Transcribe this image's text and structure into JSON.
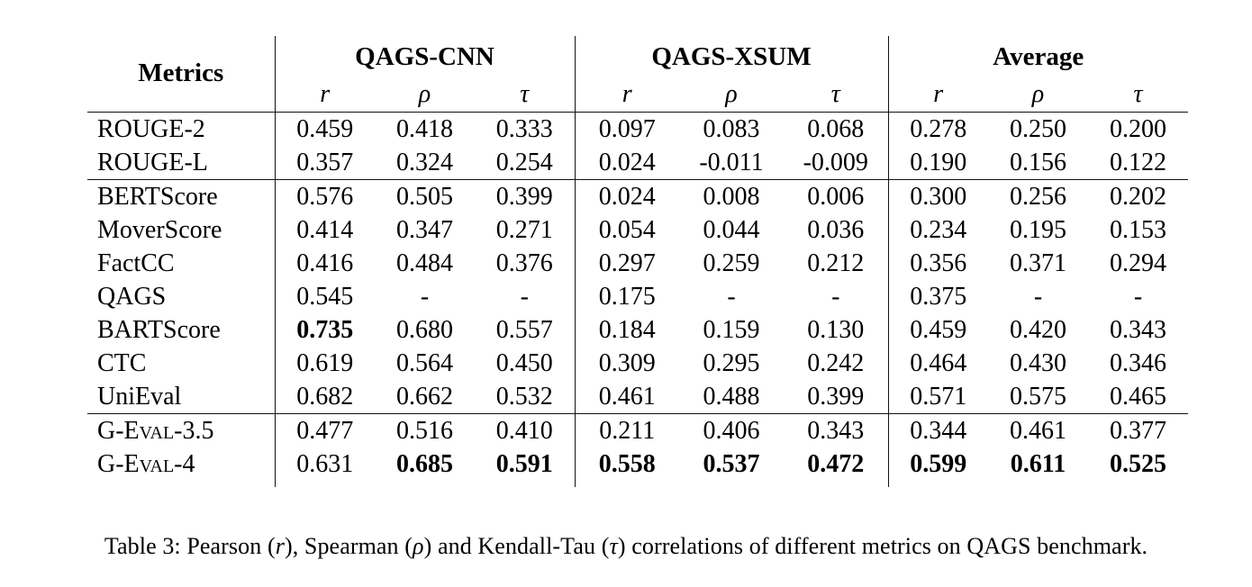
{
  "page": {
    "background": "#ffffff",
    "text_color": "#000000",
    "rule_color": "#111111"
  },
  "table": {
    "header": {
      "metrics_label": "Metrics",
      "groups": [
        {
          "label": "QAGS-CNN"
        },
        {
          "label": "QAGS-XSUM"
        },
        {
          "label": "Average"
        }
      ],
      "subheaders": [
        "r",
        "ρ",
        "τ"
      ]
    },
    "sections": [
      {
        "rule_after": true,
        "rows": [
          {
            "label": "ROUGE-2",
            "smallcaps": false,
            "values": [
              "0.459",
              "0.418",
              "0.333",
              "0.097",
              "0.083",
              "0.068",
              "0.278",
              "0.250",
              "0.200"
            ],
            "bold": []
          },
          {
            "label": "ROUGE-L",
            "smallcaps": false,
            "values": [
              "0.357",
              "0.324",
              "0.254",
              "0.024",
              "-0.011",
              "-0.009",
              "0.190",
              "0.156",
              "0.122"
            ],
            "bold": []
          }
        ]
      },
      {
        "rule_after": true,
        "rows": [
          {
            "label": "BERTScore",
            "smallcaps": false,
            "values": [
              "0.576",
              "0.505",
              "0.399",
              "0.024",
              "0.008",
              "0.006",
              "0.300",
              "0.256",
              "0.202"
            ],
            "bold": []
          },
          {
            "label": "MoverScore",
            "smallcaps": false,
            "values": [
              "0.414",
              "0.347",
              "0.271",
              "0.054",
              "0.044",
              "0.036",
              "0.234",
              "0.195",
              "0.153"
            ],
            "bold": []
          },
          {
            "label": "FactCC",
            "smallcaps": false,
            "values": [
              "0.416",
              "0.484",
              "0.376",
              "0.297",
              "0.259",
              "0.212",
              "0.356",
              "0.371",
              "0.294"
            ],
            "bold": []
          },
          {
            "label": "QAGS",
            "smallcaps": false,
            "values": [
              "0.545",
              "-",
              "-",
              "0.175",
              "-",
              "-",
              "0.375",
              "-",
              "-"
            ],
            "bold": []
          },
          {
            "label": "BARTScore",
            "smallcaps": false,
            "values": [
              "0.735",
              "0.680",
              "0.557",
              "0.184",
              "0.159",
              "0.130",
              "0.459",
              "0.420",
              "0.343"
            ],
            "bold": [
              0
            ]
          },
          {
            "label": "CTC",
            "smallcaps": false,
            "values": [
              "0.619",
              "0.564",
              "0.450",
              "0.309",
              "0.295",
              "0.242",
              "0.464",
              "0.430",
              "0.346"
            ],
            "bold": []
          },
          {
            "label": "UniEval",
            "smallcaps": false,
            "values": [
              "0.682",
              "0.662",
              "0.532",
              "0.461",
              "0.488",
              "0.399",
              "0.571",
              "0.575",
              "0.465"
            ],
            "bold": []
          }
        ]
      },
      {
        "rule_after": false,
        "rows": [
          {
            "label": "G-Eval-3.5",
            "smallcaps": true,
            "values": [
              "0.477",
              "0.516",
              "0.410",
              "0.211",
              "0.406",
              "0.343",
              "0.344",
              "0.461",
              "0.377"
            ],
            "bold": []
          },
          {
            "label": "G-Eval-4",
            "smallcaps": true,
            "values": [
              "0.631",
              "0.685",
              "0.591",
              "0.558",
              "0.537",
              "0.472",
              "0.599",
              "0.611",
              "0.525"
            ],
            "bold": [
              1,
              2,
              3,
              4,
              5,
              6,
              7,
              8
            ]
          }
        ]
      }
    ]
  },
  "caption": {
    "parts": [
      {
        "text": "Table 3: Pearson (",
        "italic": false
      },
      {
        "text": "r",
        "italic": true
      },
      {
        "text": "), Spearman (",
        "italic": false
      },
      {
        "text": "ρ",
        "italic": true
      },
      {
        "text": ") and Kendall-Tau (",
        "italic": false
      },
      {
        "text": "τ",
        "italic": true
      },
      {
        "text": ") correlations of different metrics on QAGS benchmark.",
        "italic": false
      }
    ]
  }
}
